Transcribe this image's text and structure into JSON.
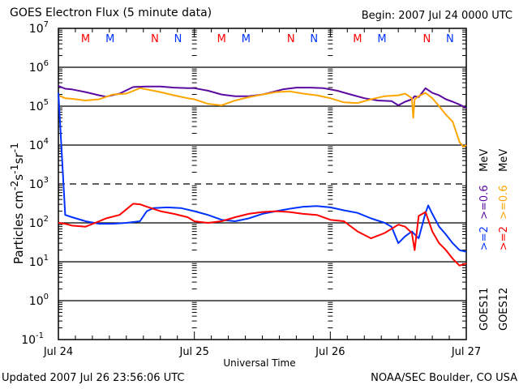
{
  "header": {
    "title": "GOES Electron Flux (5 minute data)",
    "begin": "Begin: 2007 Jul 24 0000 UTC"
  },
  "footer": {
    "updated": "Updated 2007 Jul 26 23:56:06 UTC",
    "credit": "NOAA/SEC Boulder, CO USA"
  },
  "legend": {
    "goes11_label": "GOES11",
    "goes12_label": "GOES12",
    "goes11_ge2": ">=2",
    "goes11_ge06": ">=0.6",
    "goes12_ge2": ">=2",
    "goes12_ge06": ">=0.6",
    "unit1": "MeV",
    "unit2": "MeV"
  },
  "colors": {
    "goes11_ge2": "#0033ff",
    "goes11_ge06": "#5a0aa0",
    "goes12_ge2": "#ff0000",
    "goes12_ge06": "#ffa500",
    "markers_goes12": "#ff0000",
    "markers_goes11": "#0033ff"
  },
  "chart_data": {
    "type": "line",
    "title": "GOES Electron Flux (5 minute data)",
    "xlabel": "Universal Time",
    "ylabel": "Particles cm-2 s-1 sr-1",
    "yscale": "log",
    "ylim": [
      0.1,
      10000000
    ],
    "xlim": [
      0,
      3
    ],
    "x_ticks": [
      {
        "x": 0,
        "label": "Jul 24"
      },
      {
        "x": 1,
        "label": "Jul 25"
      },
      {
        "x": 2,
        "label": "Jul 26"
      },
      {
        "x": 3,
        "label": "Jul 27"
      }
    ],
    "y_ticks": [
      {
        "exp": 7,
        "label": "10",
        "sup": "7"
      },
      {
        "exp": 6,
        "label": "10",
        "sup": "6"
      },
      {
        "exp": 5,
        "label": "10",
        "sup": "5"
      },
      {
        "exp": 4,
        "label": "10",
        "sup": "4"
      },
      {
        "exp": 3,
        "label": "10",
        "sup": "3"
      },
      {
        "exp": 2,
        "label": "10",
        "sup": "2"
      },
      {
        "exp": 1,
        "label": "10",
        "sup": "1"
      },
      {
        "exp": 0,
        "label": "10",
        "sup": "0"
      },
      {
        "exp": -1,
        "label": "10",
        "sup": "-1"
      }
    ],
    "solid_gridlines_exp": [
      6,
      5,
      4,
      2,
      1,
      0
    ],
    "dashed_gridlines_exp": [
      3
    ],
    "markers": [
      {
        "day": 0.2,
        "text": "M",
        "series": "goes12"
      },
      {
        "day": 0.38,
        "text": "M",
        "series": "goes11"
      },
      {
        "day": 0.71,
        "text": "N",
        "series": "goes12"
      },
      {
        "day": 0.88,
        "text": "N",
        "series": "goes11"
      },
      {
        "day": 1.2,
        "text": "M",
        "series": "goes12"
      },
      {
        "day": 1.38,
        "text": "M",
        "series": "goes11"
      },
      {
        "day": 1.71,
        "text": "N",
        "series": "goes12"
      },
      {
        "day": 1.88,
        "text": "N",
        "series": "goes11"
      },
      {
        "day": 2.2,
        "text": "M",
        "series": "goes12"
      },
      {
        "day": 2.38,
        "text": "M",
        "series": "goes11"
      },
      {
        "day": 2.71,
        "text": "N",
        "series": "goes12"
      },
      {
        "day": 2.88,
        "text": "N",
        "series": "goes11"
      }
    ],
    "series": [
      {
        "name": "GOES11 >=0.6 MeV",
        "key": "goes11_ge06",
        "x": [
          0,
          0.05,
          0.1,
          0.2,
          0.3,
          0.35,
          0.45,
          0.55,
          0.65,
          0.75,
          0.85,
          0.95,
          1.0,
          1.1,
          1.2,
          1.3,
          1.4,
          1.5,
          1.55,
          1.65,
          1.75,
          1.85,
          1.95,
          2.05,
          2.15,
          2.25,
          2.35,
          2.45,
          2.5,
          2.55,
          2.6,
          2.62,
          2.65,
          2.7,
          2.75,
          2.8,
          2.85,
          2.9,
          2.95,
          3.0
        ],
        "values": [
          330000,
          280000,
          270000,
          230000,
          190000,
          175000,
          210000,
          310000,
          320000,
          320000,
          300000,
          290000,
          290000,
          250000,
          200000,
          180000,
          180000,
          200000,
          220000,
          270000,
          300000,
          300000,
          290000,
          250000,
          200000,
          160000,
          140000,
          135000,
          105000,
          130000,
          150000,
          180000,
          170000,
          290000,
          220000,
          190000,
          150000,
          130000,
          110000,
          90000
        ]
      },
      {
        "name": "GOES12 >=0.6 MeV",
        "key": "goes12_ge06",
        "x": [
          0,
          0.05,
          0.1,
          0.2,
          0.3,
          0.4,
          0.5,
          0.6,
          0.65,
          0.75,
          0.85,
          0.95,
          1.0,
          1.1,
          1.2,
          1.3,
          1.4,
          1.5,
          1.6,
          1.7,
          1.8,
          1.9,
          2.0,
          2.1,
          2.2,
          2.3,
          2.4,
          2.5,
          2.55,
          2.6,
          2.61,
          2.62,
          2.65,
          2.7,
          2.75,
          2.8,
          2.85,
          2.9,
          2.95,
          2.98,
          3.0
        ],
        "values": [
          190000,
          160000,
          155000,
          140000,
          150000,
          200000,
          210000,
          290000,
          270000,
          230000,
          190000,
          160000,
          150000,
          115000,
          105000,
          140000,
          170000,
          200000,
          230000,
          240000,
          210000,
          190000,
          160000,
          125000,
          120000,
          150000,
          180000,
          190000,
          210000,
          160000,
          50000,
          150000,
          180000,
          220000,
          160000,
          100000,
          60000,
          40000,
          12000,
          9000,
          10000
        ]
      },
      {
        "name": "GOES11 >=2 MeV",
        "key": "goes11_ge2",
        "x": [
          0,
          0.05,
          0.1,
          0.2,
          0.3,
          0.4,
          0.5,
          0.6,
          0.65,
          0.7,
          0.8,
          0.9,
          1.0,
          1.1,
          1.2,
          1.3,
          1.4,
          1.5,
          1.6,
          1.7,
          1.8,
          1.9,
          2.0,
          2.1,
          2.2,
          2.3,
          2.4,
          2.45,
          2.5,
          2.55,
          2.6,
          2.65,
          2.7,
          2.72,
          2.75,
          2.8,
          2.85,
          2.9,
          2.95,
          3.0
        ],
        "values": [
          220000,
          160,
          140,
          110,
          95,
          95,
          100,
          110,
          200,
          240,
          250,
          240,
          200,
          160,
          120,
          110,
          130,
          170,
          200,
          230,
          260,
          270,
          250,
          210,
          180,
          130,
          100,
          80,
          30,
          45,
          60,
          40,
          180,
          280,
          170,
          80,
          50,
          30,
          20,
          18
        ]
      },
      {
        "name": "GOES12 >=2 MeV",
        "key": "goes12_ge2",
        "x": [
          0,
          0.05,
          0.1,
          0.2,
          0.3,
          0.35,
          0.45,
          0.55,
          0.6,
          0.65,
          0.75,
          0.85,
          0.95,
          1.0,
          1.1,
          1.2,
          1.3,
          1.4,
          1.5,
          1.6,
          1.7,
          1.8,
          1.9,
          2.0,
          2.1,
          2.2,
          2.3,
          2.4,
          2.5,
          2.55,
          2.6,
          2.62,
          2.65,
          2.7,
          2.72,
          2.75,
          2.8,
          2.85,
          2.9,
          2.95,
          3.0
        ],
        "values": [
          100,
          95,
          85,
          80,
          110,
          130,
          160,
          310,
          300,
          260,
          200,
          170,
          140,
          110,
          100,
          110,
          140,
          170,
          190,
          200,
          190,
          170,
          160,
          120,
          110,
          60,
          40,
          55,
          90,
          80,
          55,
          20,
          150,
          190,
          120,
          60,
          30,
          20,
          12,
          8,
          9
        ]
      }
    ]
  }
}
